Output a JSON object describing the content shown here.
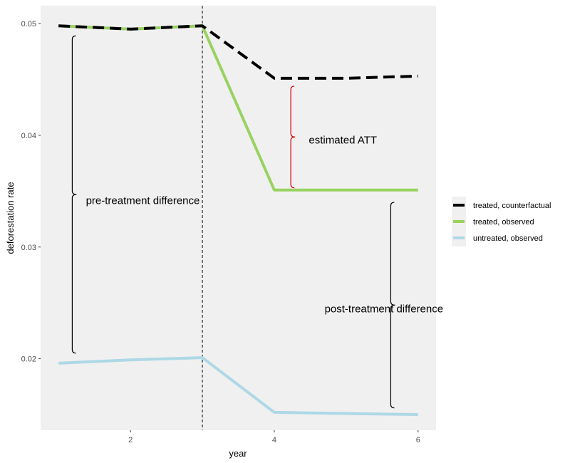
{
  "chart_data": {
    "type": "line",
    "title": "",
    "xlabel": "year",
    "ylabel": "deforestation rate",
    "xlim": [
      0.75,
      6.25
    ],
    "ylim": [
      0.0136,
      0.0516
    ],
    "x_ticks": [
      2,
      4,
      6
    ],
    "y_ticks": [
      0.02,
      0.03,
      0.04,
      0.05
    ],
    "x_tick_labels": [
      "2",
      "4",
      "6"
    ],
    "y_tick_labels": [
      "0.02",
      "0.03",
      "0.04",
      "0.05"
    ],
    "grid": false,
    "panel_background": "#f0f0f0",
    "treatment_year": 3,
    "legend_position": "right",
    "series": [
      {
        "name": "treated, counterfactual",
        "color": "#000000",
        "dash": "dashed",
        "x": [
          1,
          2,
          3,
          4,
          5,
          6
        ],
        "y": [
          0.0498,
          0.0495,
          0.0498,
          0.0451,
          0.0451,
          0.0453
        ]
      },
      {
        "name": "treated, observed",
        "color": "#99d260",
        "dash": "solid",
        "x": [
          1,
          2,
          3,
          4,
          5,
          6
        ],
        "y": [
          0.0498,
          0.0495,
          0.0498,
          0.0351,
          0.0351,
          0.0351
        ]
      },
      {
        "name": "untreated, observed",
        "color": "#add8e6",
        "dash": "solid",
        "x": [
          1,
          2,
          3,
          4,
          5,
          6
        ],
        "y": [
          0.0196,
          0.0199,
          0.0201,
          0.0152,
          0.0151,
          0.015
        ]
      }
    ],
    "annotations": [
      {
        "text": "pre-treatment difference",
        "brace_x": 1.19,
        "y_from": 0.0205,
        "y_to": 0.0489,
        "color": "#000000",
        "label_x": 1.38,
        "label_y": 0.0341
      },
      {
        "text": "estimated ATT",
        "brace_x": 4.23,
        "y_from": 0.0353,
        "y_to": 0.0444,
        "color": "#cc0000",
        "label_x": 4.48,
        "label_y": 0.0395
      },
      {
        "text": "post-treatment difference",
        "brace_x": 5.62,
        "y_from": 0.0156,
        "y_to": 0.034,
        "color": "#000000",
        "label_x": 4.7,
        "label_y": 0.0244
      }
    ]
  }
}
